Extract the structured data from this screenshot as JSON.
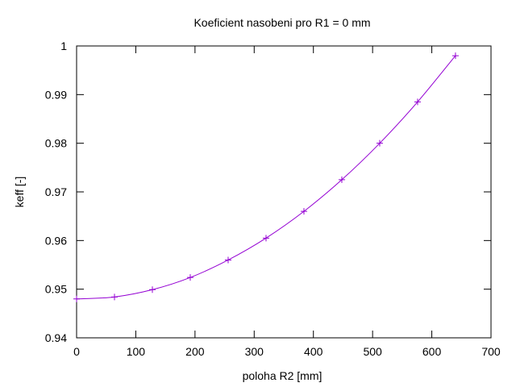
{
  "chart_data": {
    "type": "line",
    "title": "Koeficient nasobeni pro R1 = 0 mm",
    "xlabel": "poloha R2 [mm]",
    "ylabel": "keff [-]",
    "xlim": [
      0,
      700
    ],
    "ylim": [
      0.94,
      1.0
    ],
    "x_ticks": [
      "0",
      "100",
      "200",
      "300",
      "400",
      "500",
      "600",
      "700"
    ],
    "y_ticks": [
      "0.94",
      "0.95",
      "0.96",
      "0.97",
      "0.98",
      "0.99",
      "1"
    ],
    "grid": false,
    "legend": "none",
    "marker": "plus",
    "series": [
      {
        "color": "#9400d3",
        "x": [
          0,
          64,
          128,
          192,
          256,
          320,
          384,
          448,
          512,
          576,
          640
        ],
        "y": [
          0.948,
          0.9484,
          0.9499,
          0.9524,
          0.956,
          0.9605,
          0.966,
          0.9725,
          0.98,
          0.9885,
          0.998
        ]
      }
    ]
  }
}
